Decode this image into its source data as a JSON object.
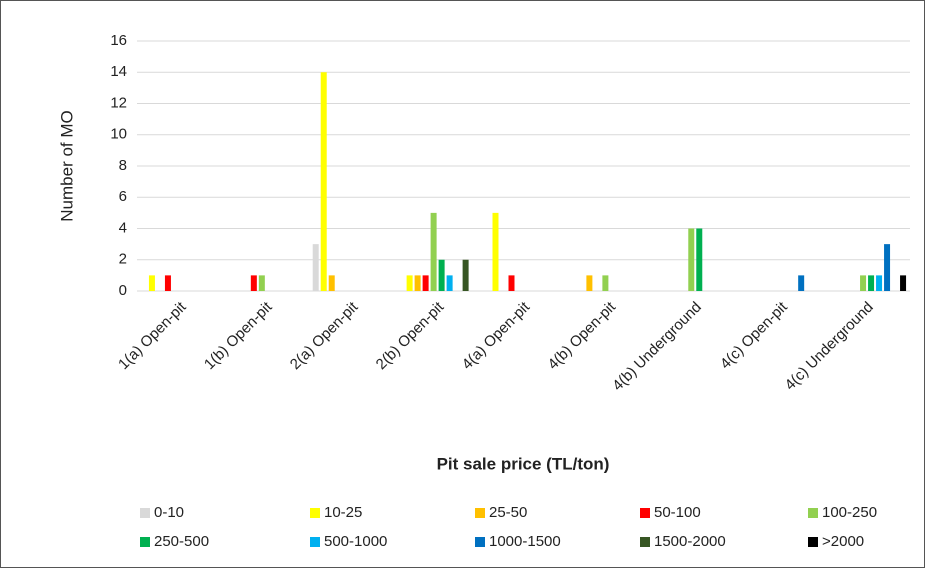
{
  "chart_data": {
    "type": "bar",
    "x_label": "Pit sale price (TL/ton)",
    "y_label": "Number of MO",
    "categories": [
      "1(a) Open-pit",
      "1(b) Open-pit",
      "2(a) Open-pit",
      "2(b) Open-pit",
      "4(a) Open-pit",
      "4(b) Open-pit",
      "4(b) Underground",
      "4(c) Open-pit",
      "4(c) Underground"
    ],
    "series": [
      {
        "name": "0-10",
        "color": "#d9d9d9",
        "values": [
          0,
          0,
          3,
          0,
          0,
          0,
          0,
          0,
          0
        ]
      },
      {
        "name": "10-25",
        "color": "#ffff00",
        "values": [
          1,
          0,
          14,
          1,
          5,
          0,
          0,
          0,
          0
        ]
      },
      {
        "name": "25-50",
        "color": "#ffc000",
        "values": [
          0,
          0,
          1,
          1,
          0,
          1,
          0,
          0,
          0
        ]
      },
      {
        "name": "50-100",
        "color": "#ff0000",
        "values": [
          1,
          1,
          0,
          1,
          1,
          0,
          0,
          0,
          0
        ]
      },
      {
        "name": "100-250",
        "color": "#92d050",
        "values": [
          0,
          1,
          0,
          5,
          0,
          1,
          4,
          0,
          1
        ]
      },
      {
        "name": "250-500",
        "color": "#00b050",
        "values": [
          0,
          0,
          0,
          2,
          0,
          0,
          4,
          0,
          1
        ]
      },
      {
        "name": "500-1000",
        "color": "#00b0f0",
        "values": [
          0,
          0,
          0,
          1,
          0,
          0,
          0,
          0,
          1
        ]
      },
      {
        "name": "1000-1500",
        "color": "#0070c0",
        "values": [
          0,
          0,
          0,
          0,
          0,
          0,
          0,
          1,
          3
        ]
      },
      {
        "name": "1500-2000",
        "color": "#375623",
        "values": [
          0,
          0,
          0,
          2,
          0,
          0,
          0,
          0,
          0
        ]
      },
      {
        "name": ">2000",
        "color": "#000000",
        "values": [
          0,
          0,
          0,
          0,
          0,
          0,
          0,
          0,
          1
        ]
      }
    ],
    "ylim": [
      0,
      16
    ],
    "yticks": [
      0,
      2,
      4,
      6,
      8,
      10,
      12,
      14,
      16
    ],
    "grid": true,
    "legend": "bottom"
  }
}
